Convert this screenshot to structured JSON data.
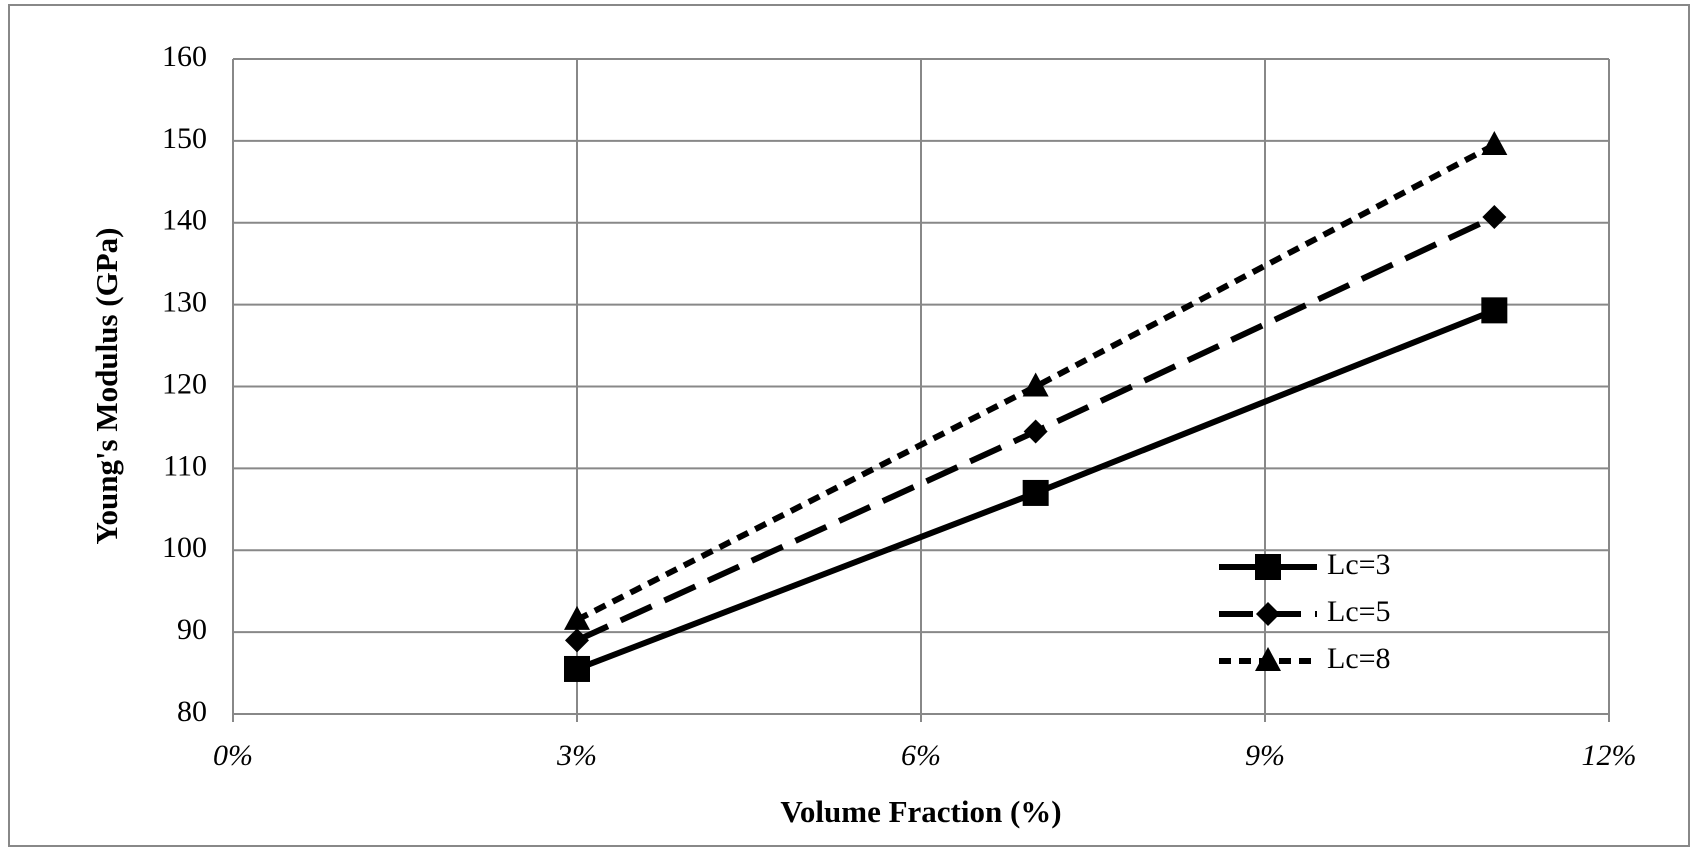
{
  "chart_data": {
    "type": "line",
    "x_label": "Volume Fraction (%)",
    "y_label": "Young's Modulus (GPa)",
    "x": [
      3,
      7,
      11
    ],
    "series": [
      {
        "name": "Lc=3",
        "color": "#000000",
        "dash": "solid",
        "marker": "square",
        "values": [
          85.5,
          107,
          129.3
        ]
      },
      {
        "name": "Lc=5",
        "color": "#000000",
        "dash": "long-dash",
        "marker": "diamond",
        "values": [
          89,
          114.5,
          140.7
        ]
      },
      {
        "name": "Lc=8",
        "color": "#000000",
        "dash": "short-dash",
        "marker": "triangle",
        "values": [
          91.5,
          120,
          149.5
        ]
      }
    ],
    "xlim": [
      0,
      12
    ],
    "xticks": [
      {
        "value": 0,
        "label": "0%"
      },
      {
        "value": 3,
        "label": "3%"
      },
      {
        "value": 6,
        "label": "6%"
      },
      {
        "value": 9,
        "label": "9%"
      },
      {
        "value": 12,
        "label": "12%"
      }
    ],
    "ylim": [
      80,
      160
    ],
    "yticks": [
      80,
      90,
      100,
      110,
      120,
      130,
      140,
      150,
      160
    ],
    "grid": true,
    "legend": "lower-right"
  }
}
